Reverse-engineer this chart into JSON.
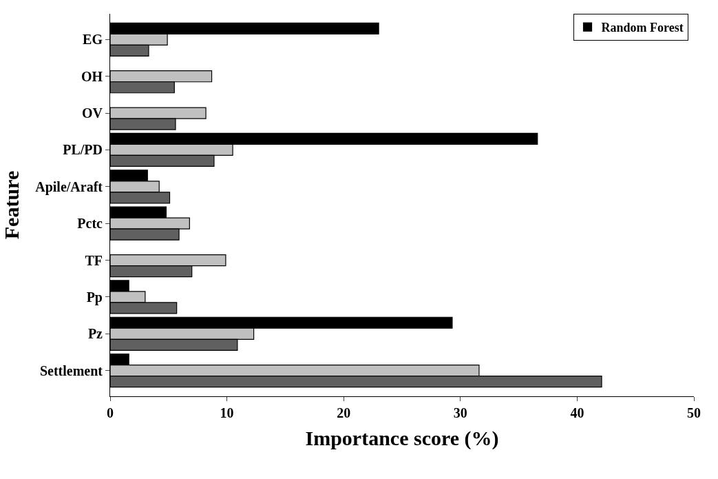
{
  "chart_data": {
    "type": "bar",
    "orientation": "horizontal",
    "xlabel": "Importance score (%)",
    "ylabel": "Feature",
    "categories": [
      "EG",
      "OH",
      "OV",
      "PL/PD",
      "Apile/Araft",
      "Pctc",
      "TF",
      "Pp",
      "Pz",
      "Settlement"
    ],
    "series": [
      {
        "name": "Random Forest",
        "color": "#000000",
        "values": [
          23.0,
          null,
          null,
          36.6,
          3.2,
          4.8,
          null,
          1.6,
          29.3,
          1.6
        ]
      },
      {
        "color": "#c0c0c0",
        "values": [
          4.9,
          8.7,
          8.2,
          10.5,
          4.2,
          6.8,
          9.9,
          3.0,
          12.3,
          31.6
        ]
      },
      {
        "color": "#606060",
        "values": [
          3.3,
          5.5,
          5.6,
          8.9,
          5.1,
          5.9,
          7.0,
          5.7,
          10.9,
          42.1
        ]
      }
    ],
    "xlim": [
      0,
      50
    ],
    "xticks": [
      0,
      10,
      20,
      30,
      40,
      50
    ],
    "legend": "top right"
  }
}
